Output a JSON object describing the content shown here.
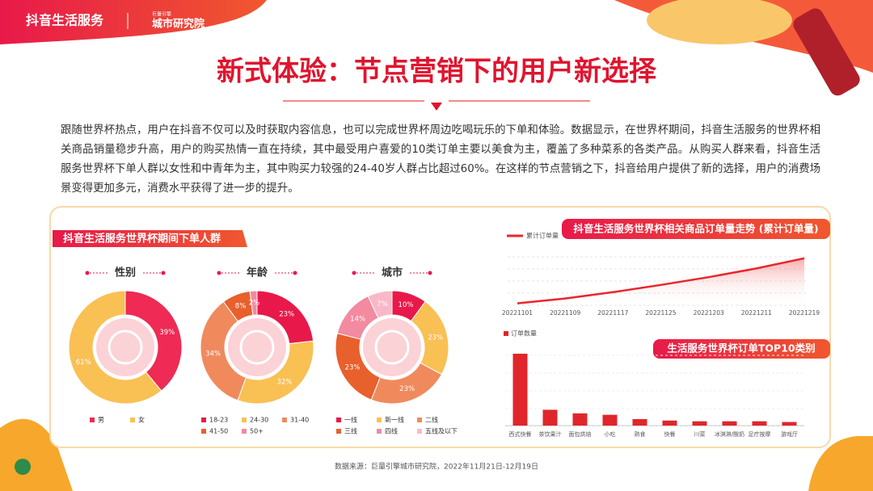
{
  "header": {
    "brand": "抖音生活服务",
    "partner_small": "巨量引擎",
    "partner": "城市研究院"
  },
  "title": "新式体验：节点营销下的用户新选择",
  "intro": "跟随世界杯热点，用户在抖音不仅可以及时获取内容信息，也可以完成世界杯周边吃喝玩乐的下单和体验。数据显示，在世界杯期间，抖音生活服务的世界杯相关商品销量稳步升高，用户的购买热情一直在持续，其中最受用户喜爱的10类订单主要以美食为主，覆盖了多种菜系的各类产品。从购买人群来看，抖音生活服务世界杯下单人群以女性和中青年为主，其中购买力较强的24-40岁人群占比超过60%。在这样的节点营销之下，抖音给用户提供了新的选择，用户的消费场景变得更加多元，消费水平获得了进一步的提升。",
  "panel_title": "抖音生活服务世界杯期间下单人群",
  "source": "数据来源：巨量引擎城市研究院，2022年11月21日-12月19日",
  "chart_data": [
    {
      "type": "pie",
      "title": "性别",
      "categories": [
        "男",
        "女"
      ],
      "values": [
        39,
        61
      ],
      "value_labels": [
        "39%",
        "61%"
      ],
      "colors": [
        "#ee2a55",
        "#f9c054"
      ]
    },
    {
      "type": "pie",
      "title": "年龄",
      "categories": [
        "18-23",
        "24-30",
        "31-40",
        "41-50",
        "50+"
      ],
      "values": [
        23,
        32,
        34,
        8,
        2
      ],
      "value_labels": [
        "23%",
        "32%",
        "34%",
        "8%",
        "2%"
      ],
      "colors": [
        "#e8194a",
        "#f9c054",
        "#f08a5d",
        "#e8602c",
        "#f28aa0"
      ]
    },
    {
      "type": "pie",
      "title": "城市",
      "categories": [
        "一线",
        "新一线",
        "二线",
        "三线",
        "四线",
        "五线及以下"
      ],
      "values": [
        10,
        23,
        23,
        23,
        14,
        7
      ],
      "value_labels": [
        "10%",
        "23%",
        "23%",
        "23%",
        "14%",
        "7%"
      ],
      "colors": [
        "#e8194a",
        "#f9c054",
        "#f08a5d",
        "#e8602c",
        "#f28aa0",
        "#f9b8c8"
      ]
    },
    {
      "type": "line",
      "title": "抖音生活服务世界杯相关商品订单量走势 (累计订单量)",
      "x": [
        "20221101",
        "20221109",
        "20221117",
        "20221125",
        "20221203",
        "20221211",
        "20221219"
      ],
      "series": [
        {
          "name": "累计订单量",
          "color": "#e8262c",
          "values": [
            4,
            14,
            27,
            42,
            58,
            76,
            97
          ]
        }
      ],
      "ylim": [
        0,
        100
      ]
    },
    {
      "type": "bar",
      "title": "生活服务世界杯订单TOP10类别",
      "categories": [
        "西式快餐",
        "茶饮果汁",
        "面包烘焙",
        "小吃",
        "熟食",
        "快餐",
        "川菜",
        "冰淇淋/酸奶",
        "足疗按摩",
        "游戏厅"
      ],
      "series": [
        {
          "name": "订单数量",
          "color": "#e0262a",
          "values": [
            100,
            22,
            17,
            15,
            9,
            7,
            6,
            6,
            6,
            5
          ]
        }
      ],
      "ylim": [
        0,
        100
      ]
    }
  ]
}
